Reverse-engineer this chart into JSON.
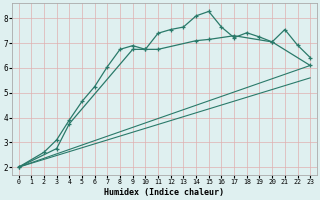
{
  "xlabel": "Humidex (Indice chaleur)",
  "bg_color": "#dff0f0",
  "line_color": "#2a7a6a",
  "xlim": [
    -0.5,
    23.5
  ],
  "ylim": [
    1.7,
    8.6
  ],
  "xticks": [
    0,
    1,
    2,
    3,
    4,
    5,
    6,
    7,
    8,
    9,
    10,
    11,
    12,
    13,
    14,
    15,
    16,
    17,
    18,
    19,
    20,
    21,
    22,
    23
  ],
  "yticks": [
    2,
    3,
    4,
    5,
    6,
    7,
    8
  ],
  "line1_x": [
    0,
    2,
    3,
    4,
    5,
    6,
    7,
    8,
    9,
    10,
    11,
    12,
    13,
    14,
    15,
    16,
    17,
    18,
    19,
    20,
    21,
    22,
    23
  ],
  "line1_y": [
    2.0,
    2.6,
    3.1,
    3.9,
    4.65,
    5.25,
    6.05,
    6.75,
    6.9,
    6.75,
    7.4,
    7.55,
    7.65,
    8.1,
    8.28,
    7.65,
    7.22,
    7.42,
    7.25,
    7.05,
    7.55,
    6.92,
    6.42
  ],
  "line2_x": [
    0,
    3,
    4,
    9,
    10,
    11,
    14,
    15,
    17,
    20,
    23
  ],
  "line2_y": [
    2.0,
    2.75,
    3.75,
    6.75,
    6.75,
    6.75,
    7.1,
    7.15,
    7.3,
    7.05,
    6.1
  ],
  "line3_x": [
    0,
    23
  ],
  "line3_y": [
    2.0,
    6.1
  ],
  "line4_x": [
    0,
    23
  ],
  "line4_y": [
    2.0,
    6.1
  ]
}
